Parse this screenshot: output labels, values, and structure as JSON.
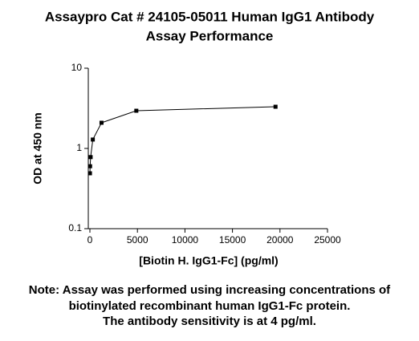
{
  "chart_data": {
    "type": "line",
    "title": [
      "Assaypro Cat # 24105-05011 Human IgG1 Antibody",
      "Assay Performance"
    ],
    "x_label": "[Biotin H. IgG1-Fc] (pg/ml)",
    "y_label": "OD at 450 nm",
    "note": [
      "Note: Assay was performed using increasing concentrations of",
      "biotinylated recombinant human IgG1-Fc protein.",
      "The antibody sensitivity is at 4 pg/ml."
    ],
    "x": [
      5,
      19,
      76,
      305,
      1221,
      4883,
      19531
    ],
    "series": [
      {
        "color": "#000000",
        "values": [
          0.49,
          0.6,
          0.78,
          1.29,
          2.09,
          2.95,
          3.31
        ]
      }
    ],
    "xlim": [
      -170,
      25000
    ],
    "xticks": [
      0,
      5000,
      10000,
      15000,
      20000,
      25000
    ],
    "ylim": [
      0.1,
      10
    ],
    "yticks": [
      0.1,
      1,
      10
    ],
    "y_log": true
  }
}
